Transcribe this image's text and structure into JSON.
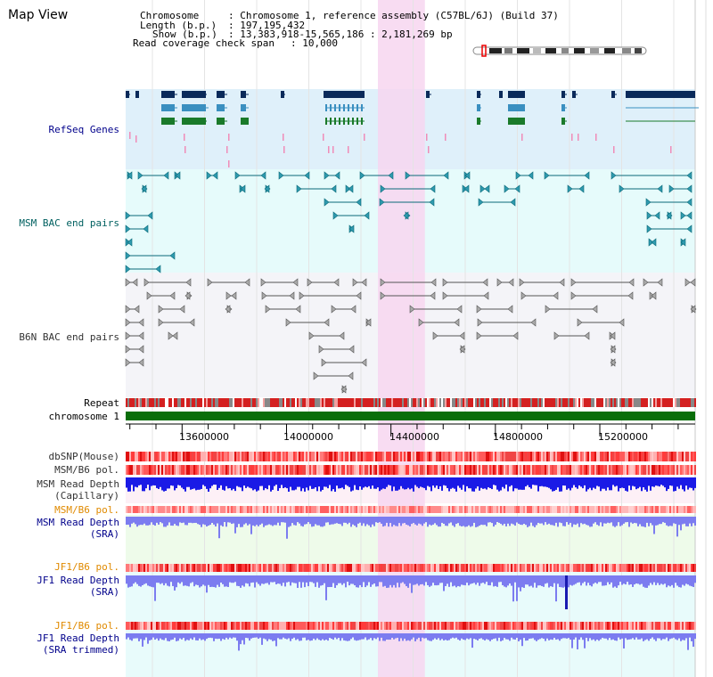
{
  "title": "Map View",
  "info": {
    "chromosome_key": "Chromosome",
    "chromosome_val": ": Chromosome 1, reference assembly (C57BL/6J) (Build 37)",
    "length_key": "Length (b.p.)",
    "length_val": ": 197,195,432",
    "show_key": "Show (b.p.)",
    "show_val": ": 13,383,918-15,565,186 : 2,181,269 bp",
    "coverage_key": "Read coverage check span",
    "coverage_val": ": 10,000"
  },
  "tracks": {
    "refseq": "RefSeq Genes",
    "msm_bac": "MSM BAC end pairs",
    "b6n_bac": "B6N BAC end pairs",
    "repeat": "Repeat",
    "chromosome": "chromosome 1",
    "dbsnp": "dbSNP(Mouse)",
    "msm_b6_pol": "MSM/B6 pol.",
    "msm_depth_cap_1": "MSM Read Depth",
    "msm_depth_cap_2": "(Capillary)",
    "msm_b6_pol_2": "MSM/B6 pol.",
    "msm_depth_sra_1": "MSM Read Depth",
    "msm_depth_sra_2": "(SRA)",
    "jf1_b6_pol": "JF1/B6 pol.",
    "jf1_depth_sra_1": "JF1 Read Depth",
    "jf1_depth_sra_2": "(SRA)",
    "jf1_b6_pol_2": "JF1/B6 pol.",
    "jf1_depth_trim_1": "JF1 Read Depth",
    "jf1_depth_trim_2": "(SRA trimmed)"
  },
  "axis": {
    "range_start": 13383918,
    "range_end": 15565186,
    "ticks": [
      "13600000",
      "14000000",
      "14400000",
      "14800000",
      "15200000"
    ],
    "highlight_start": 14350000,
    "highlight_end": 14530000
  },
  "colors": {
    "refseq_bg": "#dff0fa",
    "msm_bg": "#e6fbfb",
    "b6n_bg": "#f4f4f8",
    "highlight": "#f7d6f0",
    "gene_dark": "#0a2a5a",
    "gene_mid": "#3a8fc0",
    "gene_green": "#1a7a2a",
    "chromosome_bar": "#0a6e0a",
    "depth_blue": "#1a1ae6",
    "depth_light": "#7c7cf0",
    "label_blue": "#00008b",
    "label_teal": "#006060",
    "label_orange": "#e08a00"
  }
}
